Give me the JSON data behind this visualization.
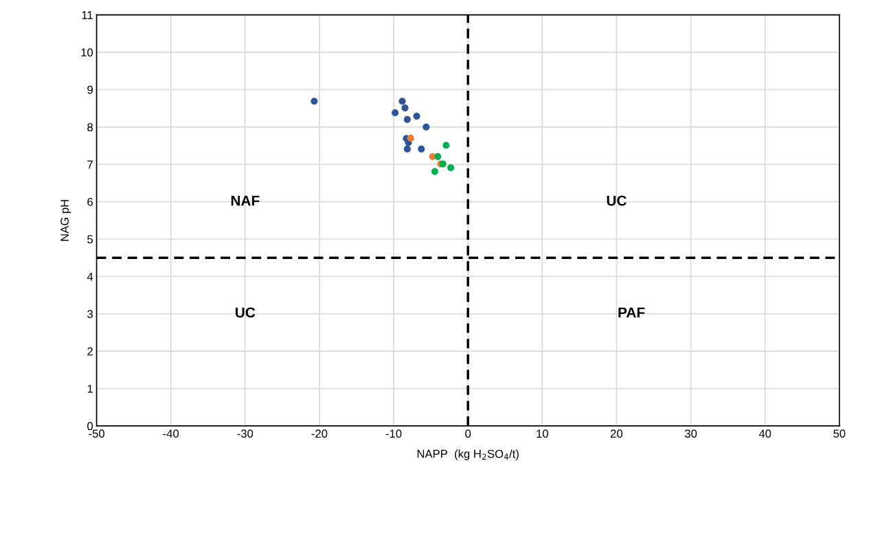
{
  "chart_data": {
    "type": "scatter",
    "xlabel": "NAPP  (kg H$_{2}$SO$_{4}$/t)",
    "ylabel": "NAG pH",
    "xlim": [
      -50,
      50
    ],
    "xticks": [
      -50,
      -40,
      -30,
      -20,
      -10,
      0,
      10,
      20,
      30,
      40,
      50
    ],
    "ylim": [
      0,
      11
    ],
    "yticks": [
      0,
      1,
      2,
      3,
      4,
      5,
      6,
      7,
      8,
      9,
      10,
      11
    ],
    "grid": true,
    "marker": "circle",
    "series": [
      {
        "color": "#2e5597",
        "x": [
          -20.7,
          -8.85,
          -8.48,
          -9.81,
          -6.9,
          -8.17,
          -5.63,
          -8.3,
          -8.02,
          -8.17,
          -6.28
        ],
        "values": [
          8.69,
          8.69,
          8.51,
          8.38,
          8.29,
          8.2,
          8.0,
          7.69,
          7.58,
          7.41,
          7.41
        ]
      },
      {
        "color": "#ed7d31",
        "x": [
          -7.71,
          -4.77,
          -3.68
        ],
        "values": [
          7.7,
          7.21,
          7.01
        ]
      },
      {
        "color": "#00b050",
        "x": [
          -2.94,
          -4.06,
          -3.37,
          -4.46,
          -2.32
        ],
        "values": [
          7.51,
          7.21,
          7.01,
          6.81,
          6.91
        ]
      }
    ],
    "ref_lines": [
      {
        "axis": "x",
        "value": 0,
        "color": "#000000",
        "line_style": "dashed"
      },
      {
        "axis": "y",
        "value": 4.5,
        "color": "#000000",
        "line_style": "dashed"
      }
    ],
    "annotations": [
      "NAF",
      "UC",
      "UC",
      "PAF"
    ]
  }
}
